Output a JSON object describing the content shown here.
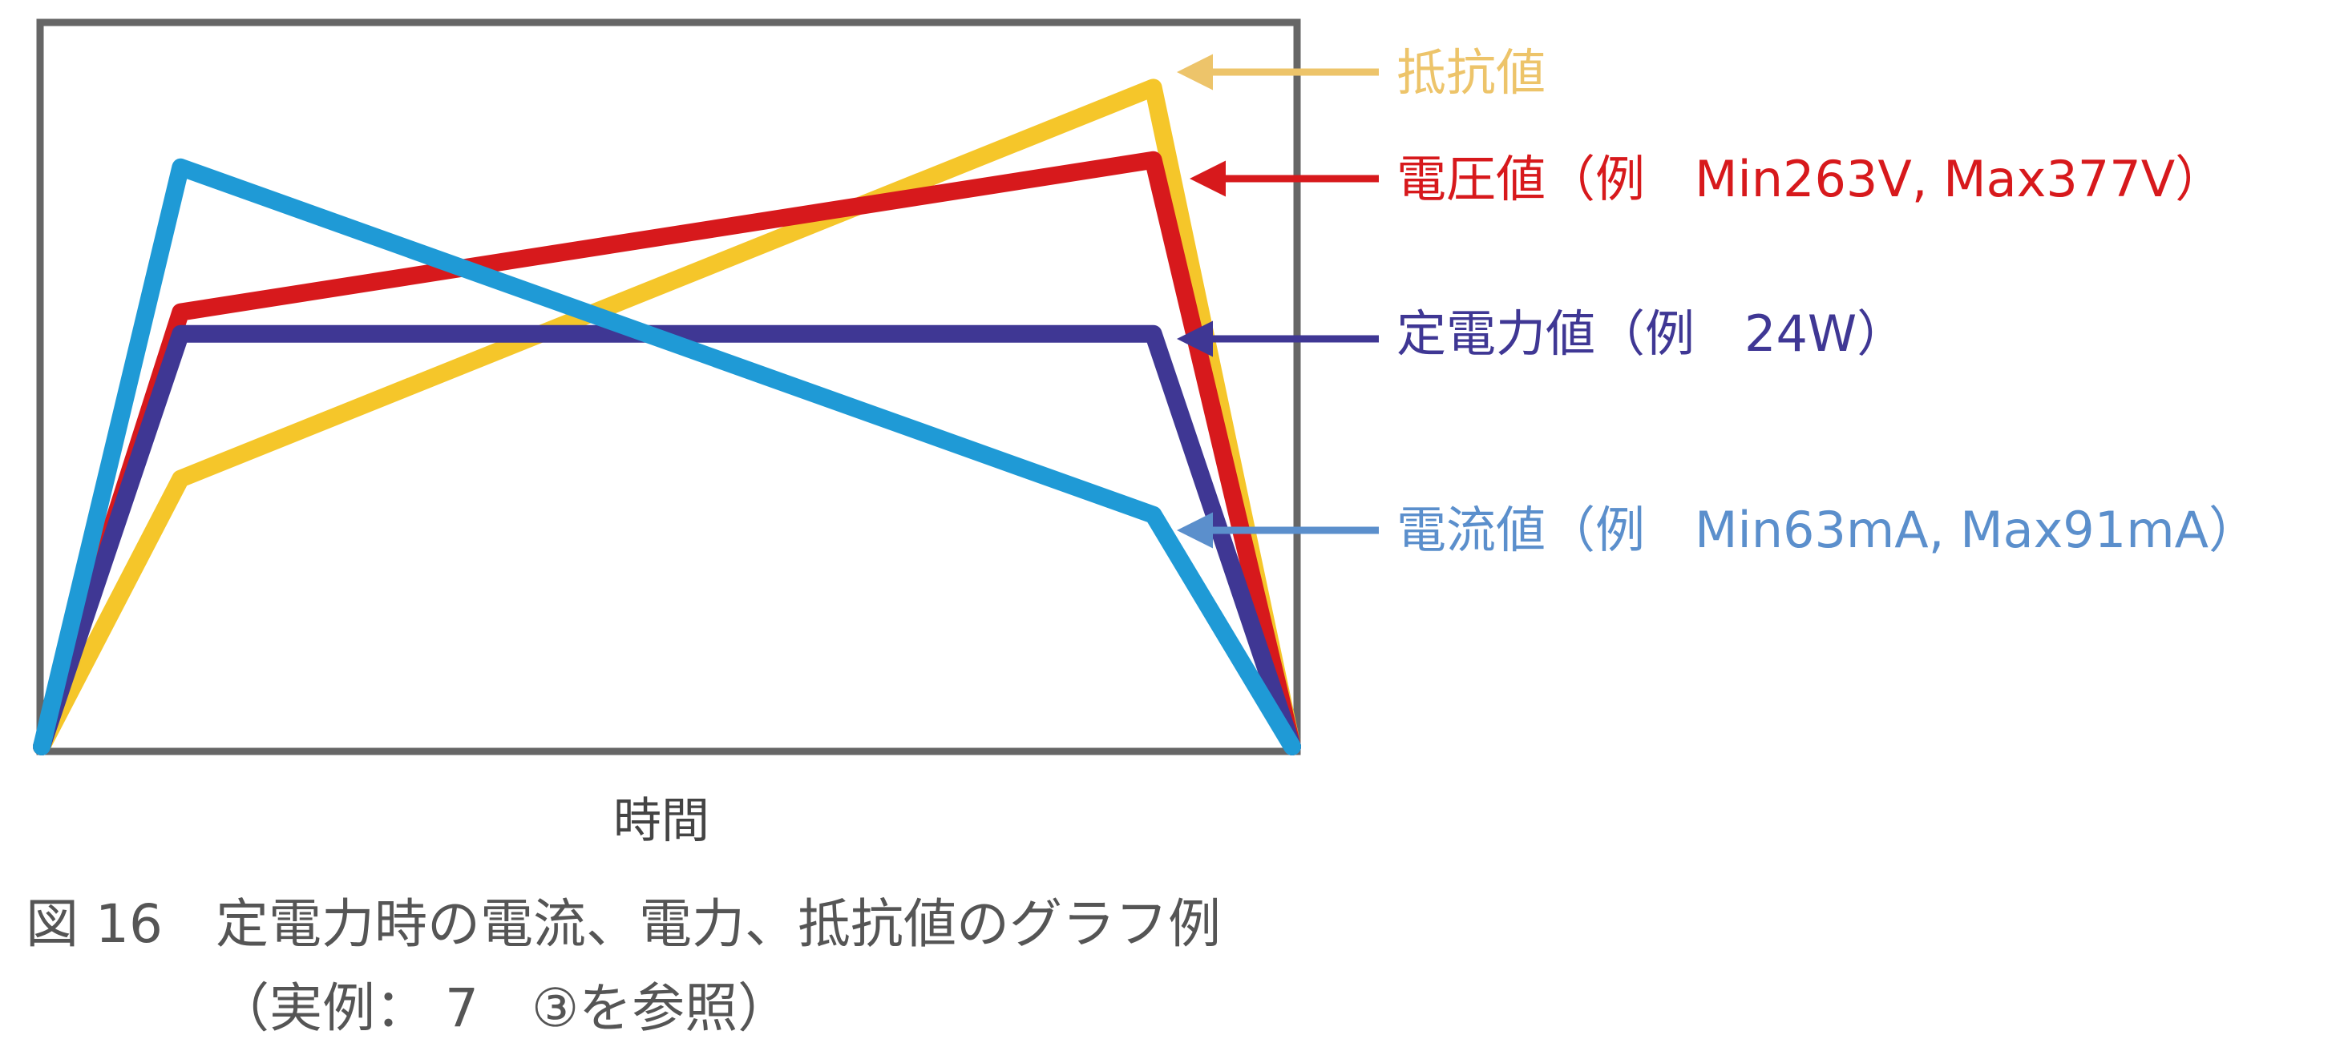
{
  "chart_data": {
    "type": "line",
    "xlabel": "時間",
    "ylabel": "",
    "x": [
      0,
      1,
      8,
      9
    ],
    "xlim": [
      0,
      9
    ],
    "ylim": [
      0,
      100
    ],
    "grid": false,
    "series": [
      {
        "name": "抵抗値",
        "color": "#F5C62A",
        "label_color": "#EDC46A",
        "values": [
          0,
          37,
          91,
          0
        ]
      },
      {
        "name": "電圧値",
        "color": "#D7191C",
        "label_color": "#D7191C",
        "values": [
          0,
          60,
          81,
          0
        ]
      },
      {
        "name": "定電力値",
        "color": "#3F3794",
        "label_color": "#3F3794",
        "values": [
          0,
          57,
          57,
          0
        ]
      },
      {
        "name": "電流値",
        "color": "#1F9AD6",
        "label_color": "#5B8FCC",
        "values": [
          0,
          80,
          32,
          0
        ]
      }
    ],
    "annotations": [
      {
        "id": "resistance",
        "text": "抵抗値"
      },
      {
        "id": "voltage",
        "text": "電圧値（例　Min263V, Max377V）"
      },
      {
        "id": "power",
        "text": "定電力値（例　24W）"
      },
      {
        "id": "current",
        "text": "電流値（例　Min63mA, Max91mA）"
      }
    ]
  },
  "caption": {
    "line1": "図 16　定電力時の電流、電力、抵抗値のグラフ例",
    "line2": "（実例： 7　③を参照）"
  }
}
